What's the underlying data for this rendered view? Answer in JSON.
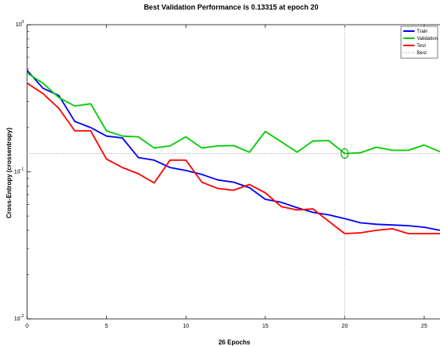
{
  "chart_data": {
    "type": "line",
    "title": "Best Validation Performance is 0.13315 at epoch 20",
    "xlabel": "26 Epochs",
    "ylabel": "Cross-Entropy  (crossentropy)",
    "xlim": [
      0,
      26
    ],
    "ylim": [
      0.01,
      1
    ],
    "yscale": "log",
    "grid": false,
    "legend_position": "top-right",
    "x_ticks": [
      0,
      5,
      10,
      15,
      20,
      25
    ],
    "y_ticks": [
      {
        "value": 1,
        "base": "10",
        "exp": "0"
      },
      {
        "value": 0.1,
        "base": "10",
        "exp": "-1"
      },
      {
        "value": 0.01,
        "base": "10",
        "exp": "-2"
      }
    ],
    "x": [
      0,
      1,
      2,
      3,
      4,
      5,
      6,
      7,
      8,
      9,
      10,
      11,
      12,
      13,
      14,
      15,
      16,
      17,
      18,
      19,
      20,
      21,
      22,
      23,
      24,
      25,
      26
    ],
    "series": [
      {
        "name": "Train",
        "color": "#0000ff",
        "values": [
          0.49,
          0.37,
          0.33,
          0.22,
          0.2,
          0.175,
          0.17,
          0.125,
          0.12,
          0.107,
          0.102,
          0.096,
          0.088,
          0.085,
          0.078,
          0.065,
          0.062,
          0.057,
          0.053,
          0.051,
          0.048,
          0.045,
          0.044,
          0.0435,
          0.043,
          0.042,
          0.04
        ]
      },
      {
        "name": "Validation",
        "color": "#00cc00",
        "values": [
          0.47,
          0.4,
          0.32,
          0.28,
          0.29,
          0.19,
          0.175,
          0.173,
          0.145,
          0.15,
          0.173,
          0.145,
          0.15,
          0.151,
          0.136,
          0.188,
          0.16,
          0.136,
          0.162,
          0.163,
          0.13315,
          0.135,
          0.147,
          0.14,
          0.14,
          0.152,
          0.137
        ]
      },
      {
        "name": "Test",
        "color": "#ff0000",
        "values": [
          0.4,
          0.34,
          0.27,
          0.19,
          0.19,
          0.122,
          0.107,
          0.097,
          0.084,
          0.12,
          0.12,
          0.085,
          0.077,
          0.075,
          0.082,
          0.072,
          0.058,
          0.055,
          0.056,
          0.046,
          0.038,
          0.0385,
          0.04,
          0.041,
          0.038,
          0.038,
          0.038
        ]
      }
    ],
    "best": {
      "name": "Best",
      "epoch": 20,
      "value": 0.13315,
      "color": "#b0b0b0"
    }
  }
}
